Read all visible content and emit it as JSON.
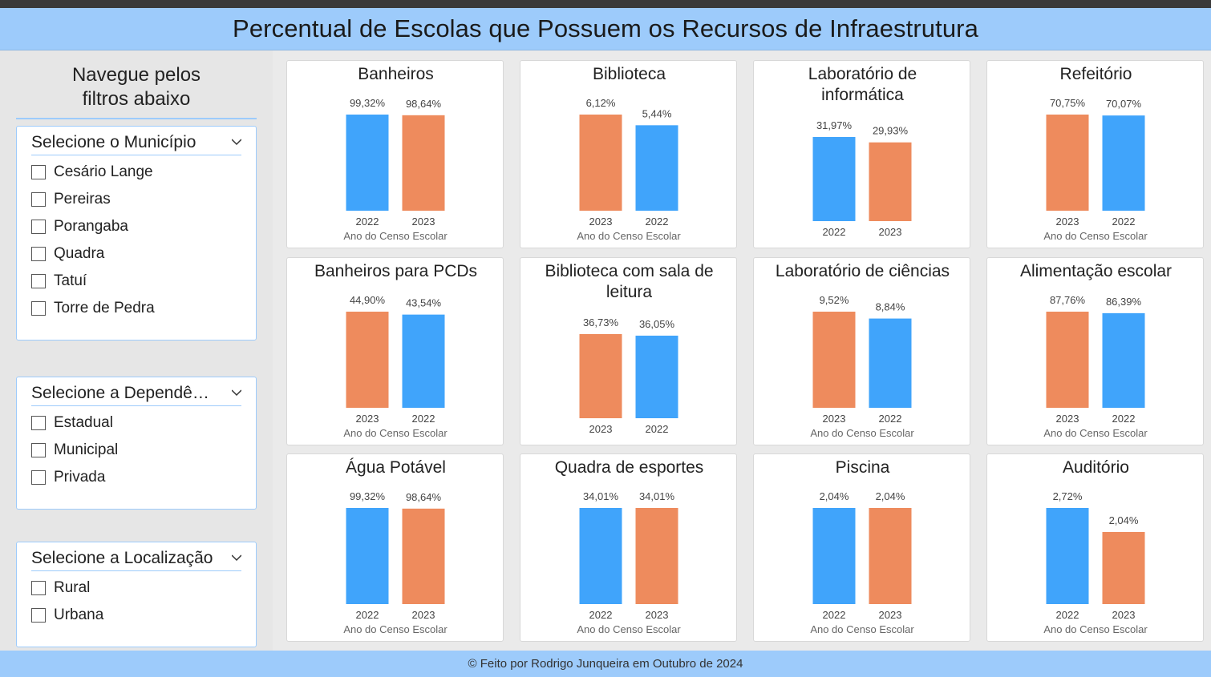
{
  "header": {
    "title": "Percentual de Escolas que Possuem os Recursos de Infraestrutura"
  },
  "sidebar": {
    "title_line1": "Navegue pelos",
    "title_line2": "filtros abaixo",
    "slicers": [
      {
        "title": "Selecione o Município",
        "items": [
          "Cesário Lange",
          "Pereiras",
          "Porangaba",
          "Quadra",
          "Tatuí",
          "Torre de Pedra"
        ]
      },
      {
        "title": "Selecione a Dependência",
        "items": [
          "Estadual",
          "Municipal",
          "Privada"
        ]
      },
      {
        "title": "Selecione a Localização",
        "items": [
          "Rural",
          "Urbana"
        ]
      }
    ]
  },
  "colors": {
    "y2022": "#40a4fb",
    "y2023": "#ee8b5d"
  },
  "chart_data": [
    {
      "type": "bar",
      "title": "Banheiros",
      "xlabel": "Ano do Censo Escolar",
      "categories": [
        "2022",
        "2023"
      ],
      "values": [
        99.32,
        98.64
      ],
      "labels": [
        "99,32%",
        "98,64%"
      ]
    },
    {
      "type": "bar",
      "title": "Biblioteca",
      "xlabel": "Ano do Censo Escolar",
      "categories": [
        "2023",
        "2022"
      ],
      "values": [
        6.12,
        5.44
      ],
      "labels": [
        "6,12%",
        "5,44%"
      ]
    },
    {
      "type": "bar",
      "title": "Laboratório de informática",
      "xlabel": "",
      "categories": [
        "2022",
        "2023"
      ],
      "values": [
        31.97,
        29.93
      ],
      "labels": [
        "31,97%",
        "29,93%"
      ]
    },
    {
      "type": "bar",
      "title": "Refeitório",
      "xlabel": "Ano do Censo Escolar",
      "categories": [
        "2023",
        "2022"
      ],
      "values": [
        70.75,
        70.07
      ],
      "labels": [
        "70,75%",
        "70,07%"
      ]
    },
    {
      "type": "bar",
      "title": "Banheiros para PCDs",
      "xlabel": "Ano do Censo Escolar",
      "categories": [
        "2023",
        "2022"
      ],
      "values": [
        44.9,
        43.54
      ],
      "labels": [
        "44,90%",
        "43,54%"
      ]
    },
    {
      "type": "bar",
      "title": "Biblioteca com sala de leitura",
      "xlabel": "",
      "categories": [
        "2023",
        "2022"
      ],
      "values": [
        36.73,
        36.05
      ],
      "labels": [
        "36,73%",
        "36,05%"
      ]
    },
    {
      "type": "bar",
      "title": "Laboratório de ciências",
      "xlabel": "Ano do Censo Escolar",
      "categories": [
        "2023",
        "2022"
      ],
      "values": [
        9.52,
        8.84
      ],
      "labels": [
        "9,52%",
        "8,84%"
      ]
    },
    {
      "type": "bar",
      "title": "Alimentação escolar",
      "xlabel": "Ano do Censo Escolar",
      "categories": [
        "2023",
        "2022"
      ],
      "values": [
        87.76,
        86.39
      ],
      "labels": [
        "87,76%",
        "86,39%"
      ]
    },
    {
      "type": "bar",
      "title": "Água Potável",
      "xlabel": "Ano do Censo Escolar",
      "categories": [
        "2022",
        "2023"
      ],
      "values": [
        99.32,
        98.64
      ],
      "labels": [
        "99,32%",
        "98,64%"
      ]
    },
    {
      "type": "bar",
      "title": "Quadra de esportes",
      "xlabel": "Ano do Censo Escolar",
      "categories": [
        "2022",
        "2023"
      ],
      "values": [
        34.01,
        34.01
      ],
      "labels": [
        "34,01%",
        "34,01%"
      ]
    },
    {
      "type": "bar",
      "title": "Piscina",
      "xlabel": "Ano do Censo Escolar",
      "categories": [
        "2022",
        "2023"
      ],
      "values": [
        2.04,
        2.04
      ],
      "labels": [
        "2,04%",
        "2,04%"
      ]
    },
    {
      "type": "bar",
      "title": "Auditório",
      "xlabel": "Ano do Censo Escolar",
      "categories": [
        "2022",
        "2023"
      ],
      "values": [
        2.72,
        2.04
      ],
      "labels": [
        "2,72%",
        "2,04%"
      ]
    }
  ],
  "footer": {
    "text": "© Feito por Rodrigo Junqueira em Outubro de 2024"
  }
}
